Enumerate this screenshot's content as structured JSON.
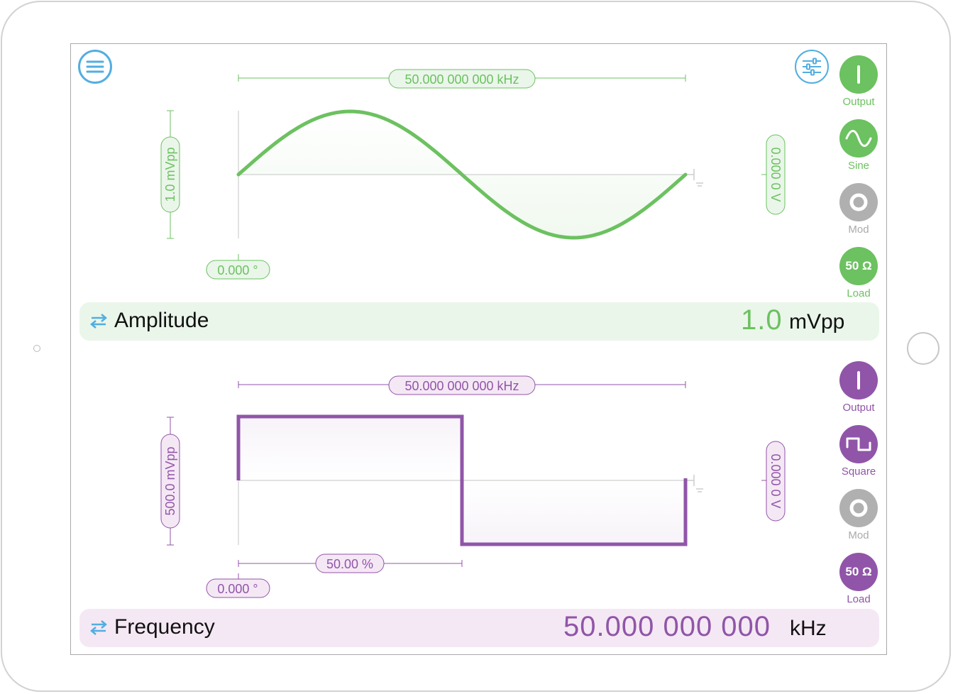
{
  "colors": {
    "ch1": "#6cc160",
    "ch1_bar": "#eaf6ea",
    "ch2": "#9055a8",
    "ch2_bar": "#f5e8f5",
    "accent": "#52aee0",
    "inactive": "#b0b0b0"
  },
  "toolbar": {
    "menu_icon": "hamburger-menu-icon",
    "settings_icon": "sliders-settings-icon"
  },
  "channel1": {
    "waveform": "sine",
    "frequency_label": "50.000 000 000 kHz",
    "amplitude_label": "1.0 mVpp",
    "offset_label": "0.000 0 V",
    "phase_label": "0.000 °",
    "buttons": {
      "output": "Output",
      "waveform": "Sine",
      "mod": "Mod",
      "load": "Load",
      "load_value": "50 Ω"
    },
    "param": {
      "name": "Amplitude",
      "value": "1.0",
      "unit": "mVpp"
    }
  },
  "channel2": {
    "waveform": "square",
    "duty_cycle": 0.5,
    "frequency_label": "50.000 000 000 kHz",
    "amplitude_label": "500.0 mVpp",
    "offset_label": "0.000 0 V",
    "phase_label": "0.000 °",
    "duty_label": "50.00 %",
    "buttons": {
      "output": "Output",
      "waveform": "Square",
      "mod": "Mod",
      "load": "Load",
      "load_value": "50 Ω"
    },
    "param": {
      "name": "Frequency",
      "value": "50.000 000 000",
      "unit": "kHz"
    }
  }
}
